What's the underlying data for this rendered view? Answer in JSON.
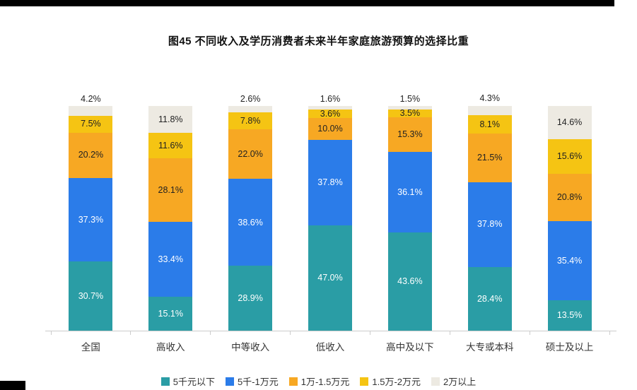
{
  "page": {
    "viewer_background": "#000000",
    "card_background": "#ffffff"
  },
  "chart_data": {
    "type": "bar",
    "stacked": true,
    "title": "图45 不同收入及学历消费者未来半年家庭旅游预算的选择比重",
    "unit": "%",
    "categories": [
      "全国",
      "高收入",
      "中等收入",
      "低收入",
      "高中及以下",
      "大专或本科",
      "硕士及以上"
    ],
    "series": [
      {
        "name": "5千元以下",
        "color": "#2A9DA5",
        "label_color": "#ffffff",
        "values": [
          30.7,
          15.1,
          28.9,
          47.0,
          43.6,
          28.4,
          13.5
        ]
      },
      {
        "name": "5千-1万元",
        "color": "#2B7CE9",
        "label_color": "#ffffff",
        "values": [
          37.3,
          33.4,
          38.6,
          37.8,
          36.1,
          37.8,
          35.4
        ]
      },
      {
        "name": "1万-1.5万元",
        "color": "#F7A823",
        "label_color": "#222222",
        "values": [
          20.2,
          28.1,
          22.0,
          10.0,
          15.3,
          21.5,
          20.8
        ]
      },
      {
        "name": "1.5万-2万元",
        "color": "#F5C413",
        "label_color": "#222222",
        "values": [
          7.5,
          11.6,
          7.8,
          3.6,
          3.5,
          8.1,
          15.6
        ]
      },
      {
        "name": "2万以上",
        "color": "#EDEAE2",
        "label_color": "#222222",
        "values": [
          4.2,
          11.8,
          2.6,
          1.6,
          1.5,
          4.3,
          14.6
        ]
      }
    ],
    "ylim": [
      0,
      100
    ],
    "grid": false,
    "legend_position": "bottom",
    "value_labels": true,
    "outside_label_threshold": 10,
    "outside_label_color": "#222222",
    "axis_color": "#cccccc",
    "category_label_color": "#333333"
  }
}
